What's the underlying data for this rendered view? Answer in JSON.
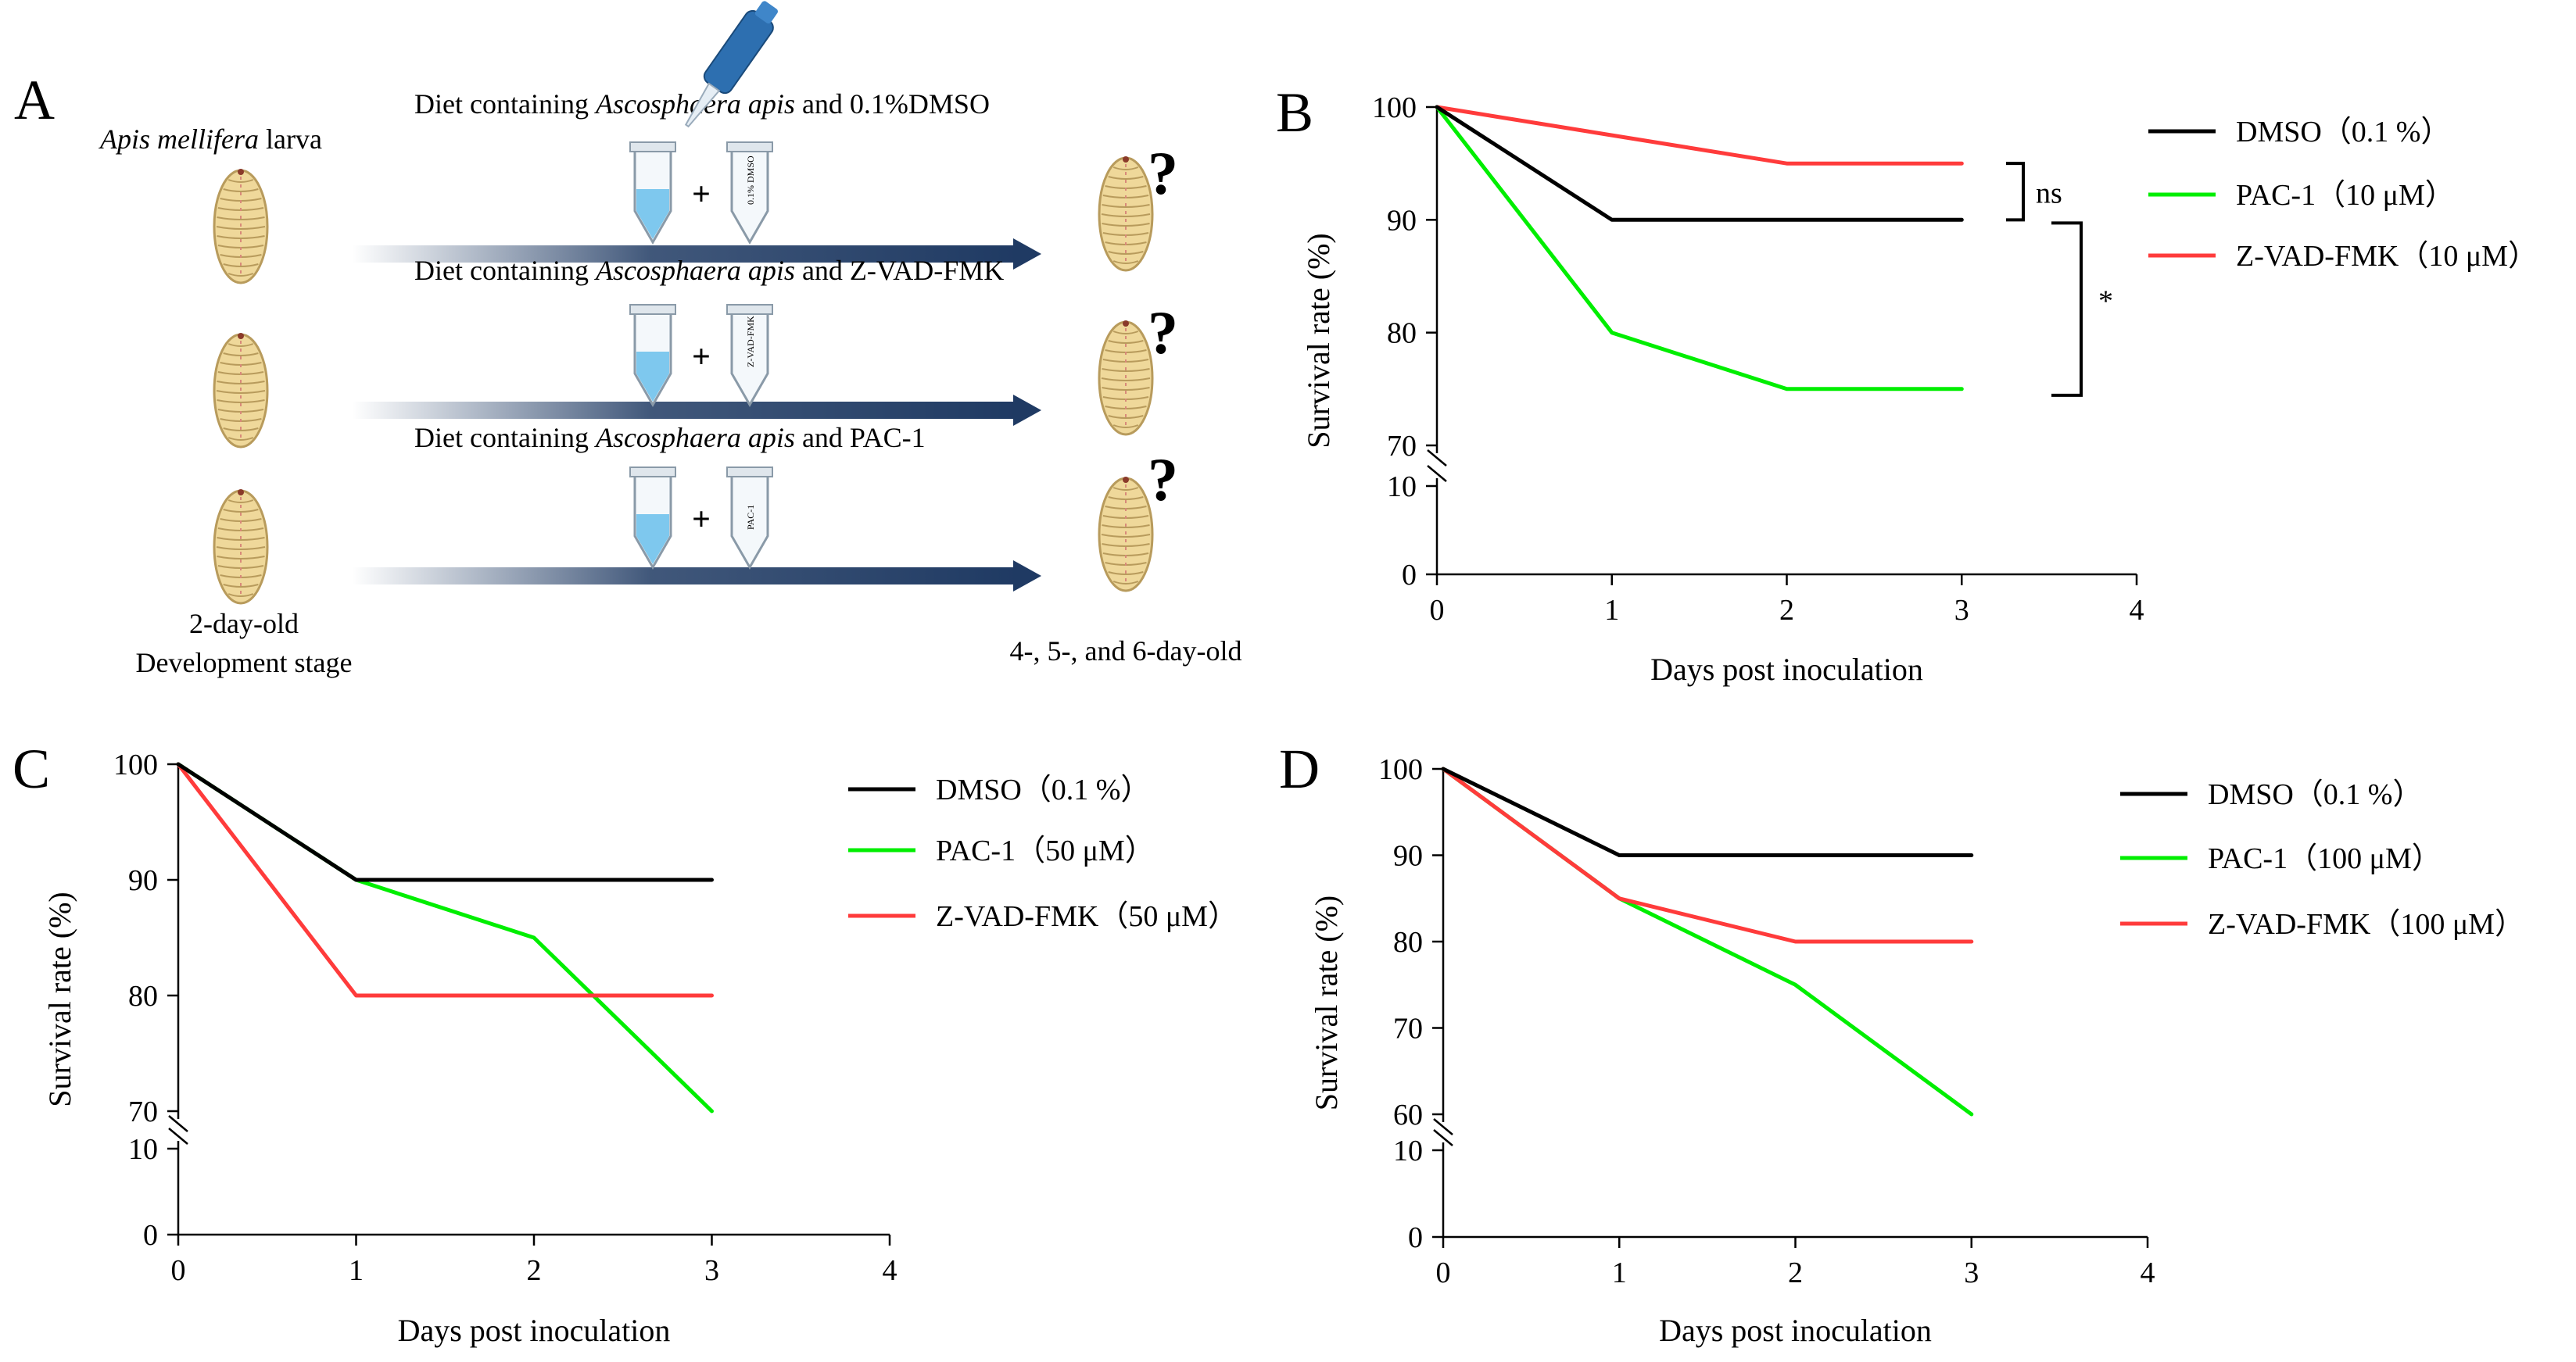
{
  "colors": {
    "dmso": "#000000",
    "pac1": "#00ee00",
    "zvad": "#ff3b3b",
    "arrow": "#1f3a63",
    "larva_fill": "#efd89a",
    "larva_stroke": "#b89b5c",
    "larva_seg": "#d88a7a",
    "tube_liquid": "#7ec8ee"
  },
  "panel_a": {
    "letter": "A",
    "larva_label_italic": "Apis mellifera",
    "larva_label_rest": " larva",
    "stage_line1": "2-day-old",
    "stage_line2": "Development stage",
    "end_label": "4-, 5-, and 6-day-old",
    "question_mark": "?",
    "plus": "+",
    "pipette_icon": "pipette-icon",
    "rows": [
      {
        "prefix": "Diet containing ",
        "italic": "Ascosphaera apis",
        "suffix": " and 0.1%DMSO",
        "tube_label": "0.1% DMSO"
      },
      {
        "prefix": "Diet containing ",
        "italic": "Ascosphaera apis",
        "suffix": " and Z-VAD-FMK",
        "tube_label": "Z-VAD-FMK"
      },
      {
        "prefix": "Diet containing ",
        "italic": "Ascosphaera apis",
        "suffix": " and PAC-1",
        "tube_label": "PAC-1"
      }
    ]
  },
  "chart_data": [
    {
      "panel": "B",
      "type": "line",
      "xlabel": "Days post  inoculation",
      "ylabel": "Survival rate (%)",
      "x": [
        0,
        1,
        2,
        3
      ],
      "xlim": [
        0,
        4
      ],
      "xticks": [
        0,
        1,
        2,
        3,
        4
      ],
      "ylim_upper": [
        70,
        100
      ],
      "yticks_upper": [
        70,
        80,
        90,
        100
      ],
      "ylim_lower": [
        0,
        10
      ],
      "yticks_lower": [
        0,
        10
      ],
      "series": [
        {
          "name": "DMSO（0.1 %）",
          "color": "#000000",
          "values": [
            100,
            90,
            90,
            90
          ]
        },
        {
          "name": "PAC-1（10 μM）",
          "color": "#00ee00",
          "values": [
            100,
            80,
            75,
            75
          ]
        },
        {
          "name": "Z-VAD-FMK（10 μM）",
          "color": "#ff3b3b",
          "values": [
            100,
            97.5,
            95,
            95
          ]
        }
      ],
      "legend": [
        "DMSO（0.1 %）",
        "PAC-1（10 μM）",
        "Z-VAD-FMK（10 μM）"
      ],
      "annotations": [
        {
          "text": "ns",
          "from": 95,
          "to": 90
        },
        {
          "text": "*",
          "from": 90,
          "to": 75
        }
      ]
    },
    {
      "panel": "C",
      "type": "line",
      "xlabel": "Days post  inoculation",
      "ylabel": "Survival rate (%)",
      "x": [
        0,
        1,
        2,
        3
      ],
      "xlim": [
        0,
        4
      ],
      "xticks": [
        0,
        1,
        2,
        3,
        4
      ],
      "ylim_upper": [
        70,
        100
      ],
      "yticks_upper": [
        70,
        80,
        90,
        100
      ],
      "ylim_lower": [
        0,
        10
      ],
      "yticks_lower": [
        0,
        10
      ],
      "series": [
        {
          "name": "DMSO（0.1 %）",
          "color": "#000000",
          "values": [
            100,
            90,
            90,
            90
          ]
        },
        {
          "name": "PAC-1（50 μM）",
          "color": "#00ee00",
          "values": [
            100,
            90,
            85,
            70
          ]
        },
        {
          "name": "Z-VAD-FMK（50 μM）",
          "color": "#ff3b3b",
          "values": [
            100,
            80,
            80,
            80
          ]
        }
      ],
      "legend": [
        "DMSO（0.1 %）",
        "PAC-1（50 μM）",
        "Z-VAD-FMK（50 μM）"
      ],
      "annotations": []
    },
    {
      "panel": "D",
      "type": "line",
      "xlabel": "Days post  inoculation",
      "ylabel": "Survival rate (%)",
      "x": [
        0,
        1,
        2,
        3
      ],
      "xlim": [
        0,
        4
      ],
      "xticks": [
        0,
        1,
        2,
        3,
        4
      ],
      "ylim_upper": [
        60,
        100
      ],
      "yticks_upper": [
        60,
        70,
        80,
        90,
        100
      ],
      "ylim_lower": [
        0,
        10
      ],
      "yticks_lower": [
        0,
        10
      ],
      "series": [
        {
          "name": "DMSO（0.1 %）",
          "color": "#000000",
          "values": [
            100,
            90,
            90,
            90
          ]
        },
        {
          "name": "PAC-1（100 μM）",
          "color": "#00ee00",
          "values": [
            100,
            85,
            75,
            60
          ]
        },
        {
          "name": "Z-VAD-FMK（100 μM）",
          "color": "#ff3b3b",
          "values": [
            100,
            85,
            80,
            80
          ]
        }
      ],
      "legend": [
        "DMSO（0.1 %）",
        "PAC-1（100 μM）",
        "Z-VAD-FMK（100 μM）"
      ],
      "annotations": []
    }
  ]
}
